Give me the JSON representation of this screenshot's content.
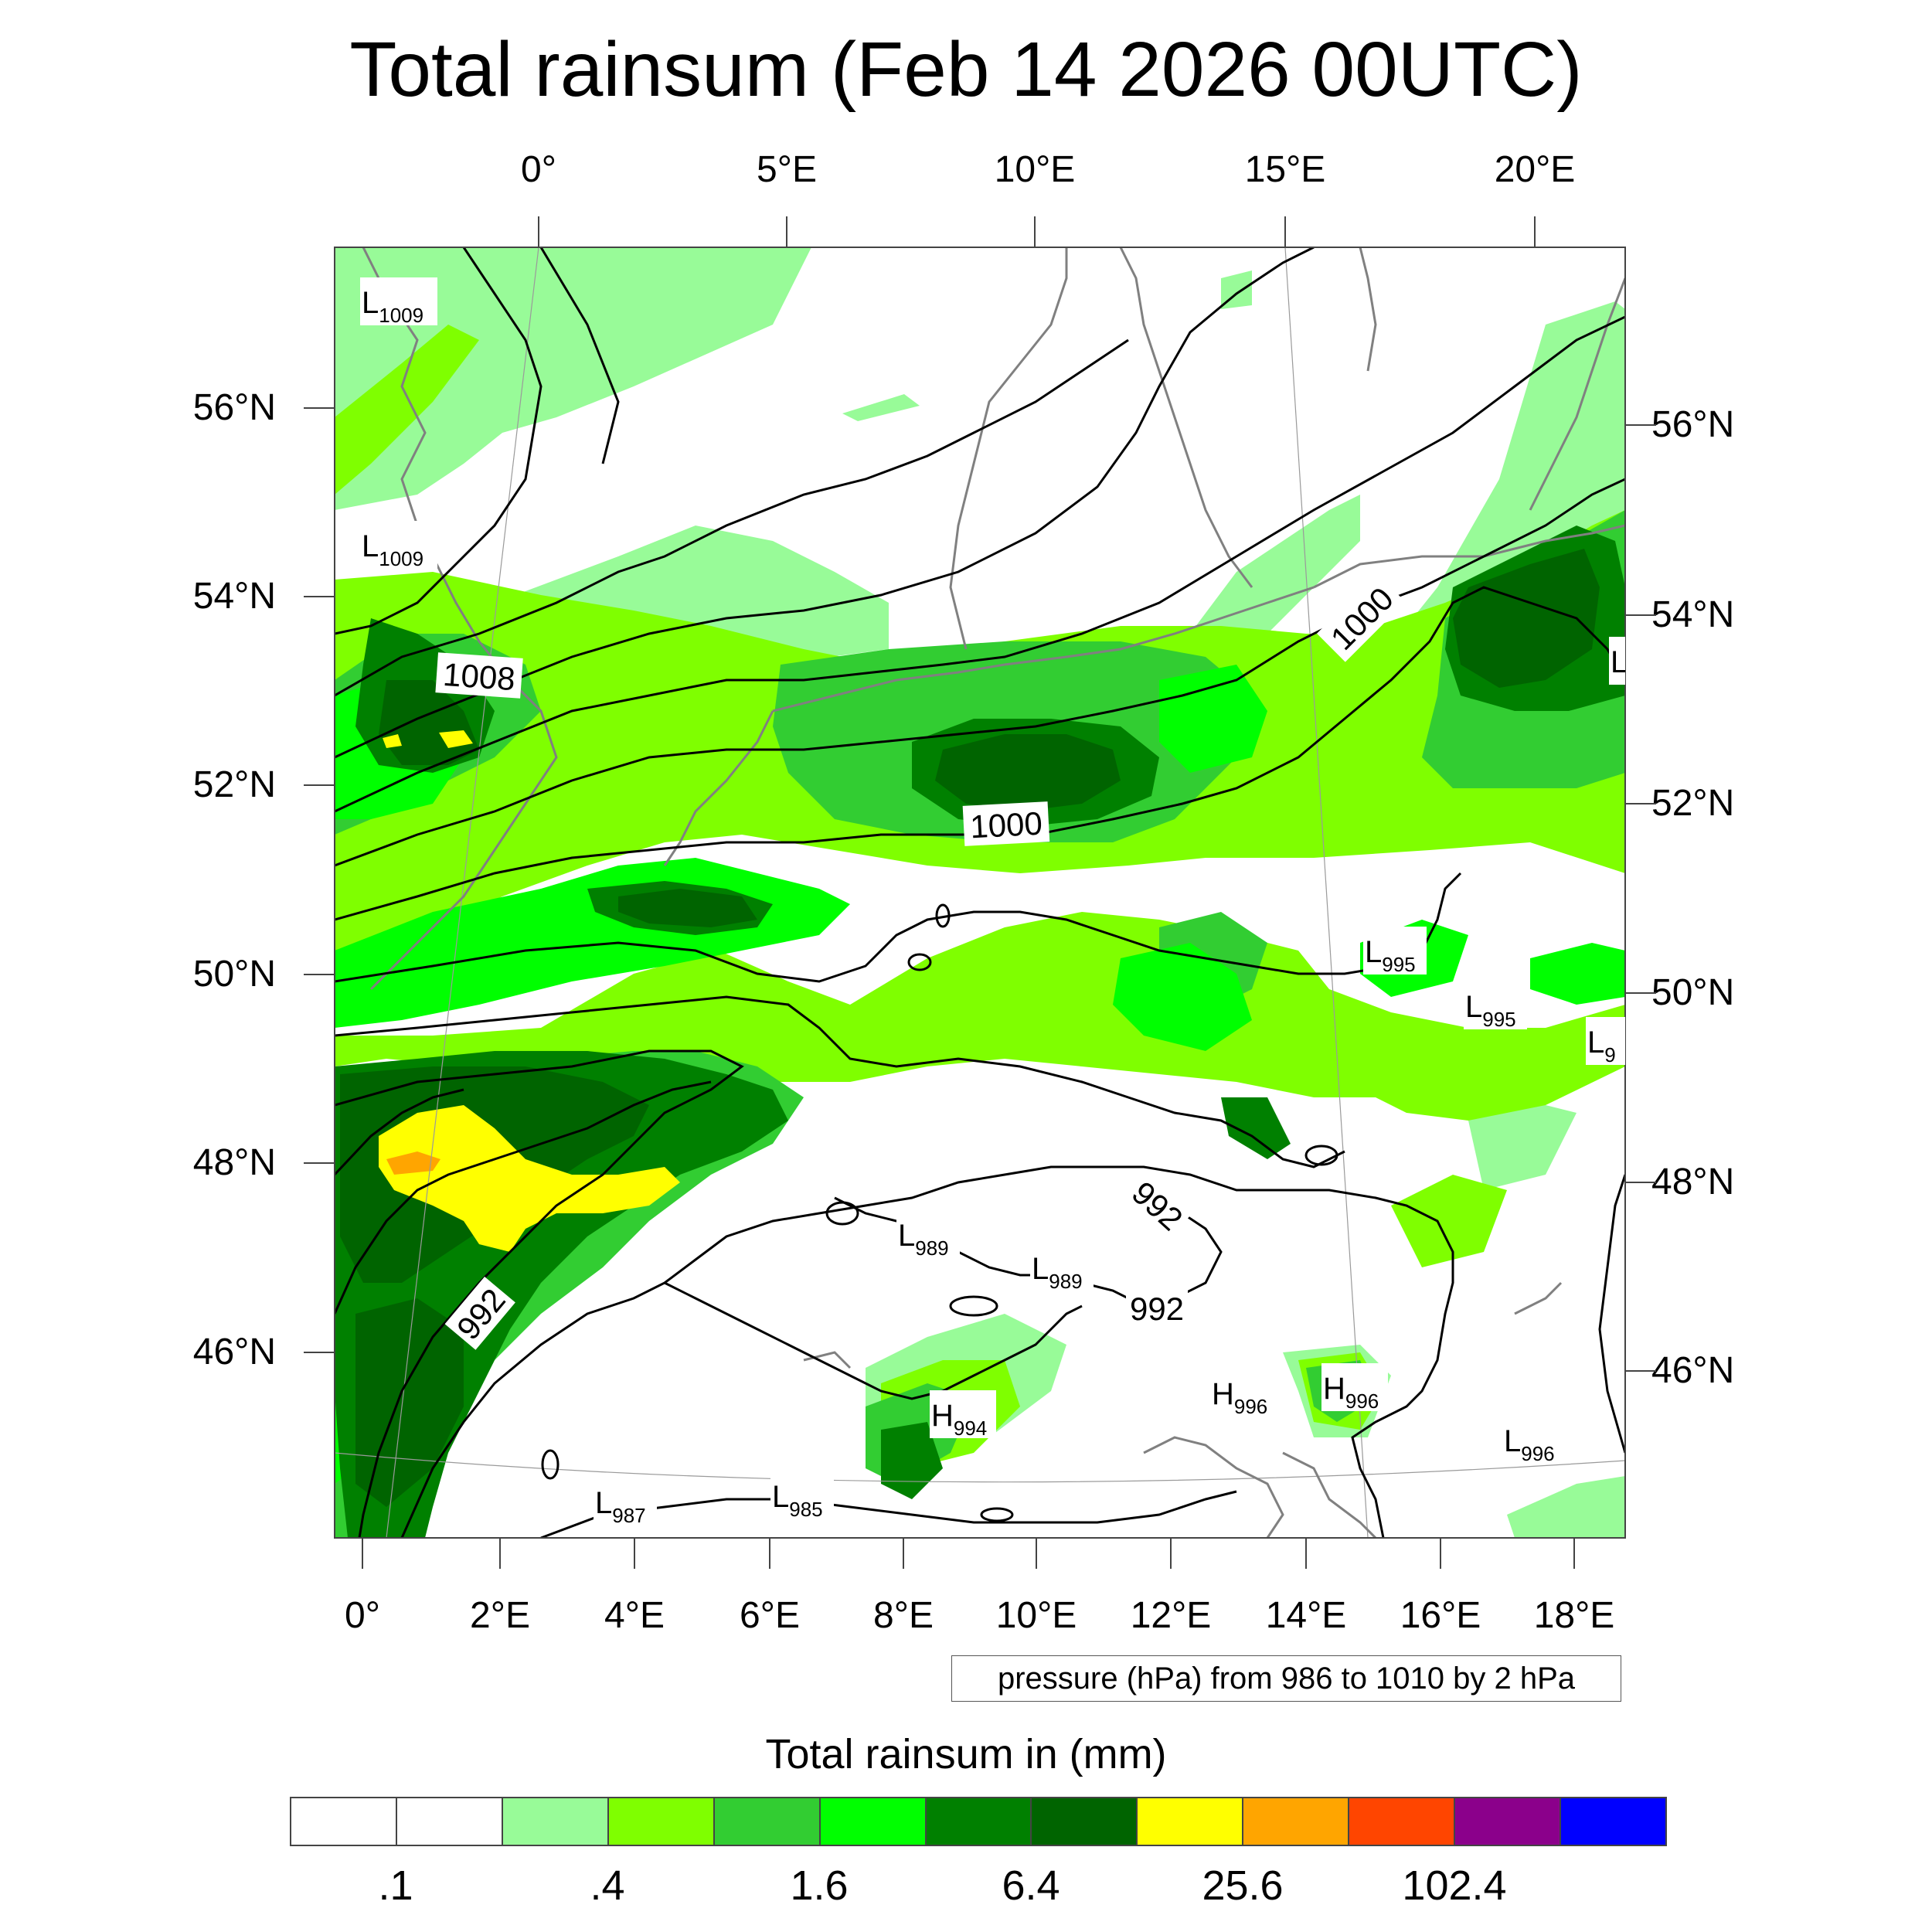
{
  "title": "Total rainsum (Feb 14 2026 00UTC)",
  "map": {
    "top_lon_labels": [
      "0°",
      "5°E",
      "10°E",
      "15°E",
      "20°E"
    ],
    "bottom_lon_labels": [
      "0°",
      "2°E",
      "4°E",
      "6°E",
      "8°E",
      "10°E",
      "12°E",
      "14°E",
      "16°E",
      "18°E"
    ],
    "left_lat_labels": [
      "56°N",
      "54°N",
      "52°N",
      "50°N",
      "48°N",
      "46°N"
    ],
    "right_lat_labels": [
      "56°N",
      "54°N",
      "52°N",
      "50°N",
      "48°N",
      "46°N"
    ],
    "contour_labels": [
      "1008",
      "1000",
      "1000",
      "992",
      "992",
      "992"
    ],
    "pressure_centers": [
      {
        "kind": "L",
        "value": "1009"
      },
      {
        "kind": "L",
        "value": "1009"
      },
      {
        "kind": "L",
        "value": ""
      },
      {
        "kind": "L",
        "value": "995"
      },
      {
        "kind": "L",
        "value": "995"
      },
      {
        "kind": "L",
        "value": "9"
      },
      {
        "kind": "L",
        "value": "989"
      },
      {
        "kind": "L",
        "value": "989"
      },
      {
        "kind": "H",
        "value": "994"
      },
      {
        "kind": "H",
        "value": "996"
      },
      {
        "kind": "H",
        "value": "996"
      },
      {
        "kind": "L",
        "value": "996"
      },
      {
        "kind": "L",
        "value": "987"
      },
      {
        "kind": "L",
        "value": "985"
      }
    ],
    "colors": {
      "light_green": "#98fb98",
      "lime": "#7fff00",
      "medium_green": "#32cd32",
      "bright_green": "#00ff00",
      "green": "#008000",
      "dark_green": "#006400",
      "yellow": "#ffff00",
      "orange": "#ff8c00",
      "contour": "#000000",
      "coastline": "#808080"
    }
  },
  "info_box": "pressure (hPa) from 986 to 1010 by 2 hPa",
  "legend": {
    "title": "Total rainsum in (mm)",
    "colors": [
      "#ffffff",
      "#ffffff",
      "#98fb98",
      "#7fff00",
      "#32cd32",
      "#00ff00",
      "#008000",
      "#006400",
      "#ffff00",
      "#ffa500",
      "#ff4500",
      "#8b008b",
      "#0000ff"
    ],
    "labels": [
      ".1",
      ".4",
      "1.6",
      "6.4",
      "25.6",
      "102.4"
    ]
  }
}
